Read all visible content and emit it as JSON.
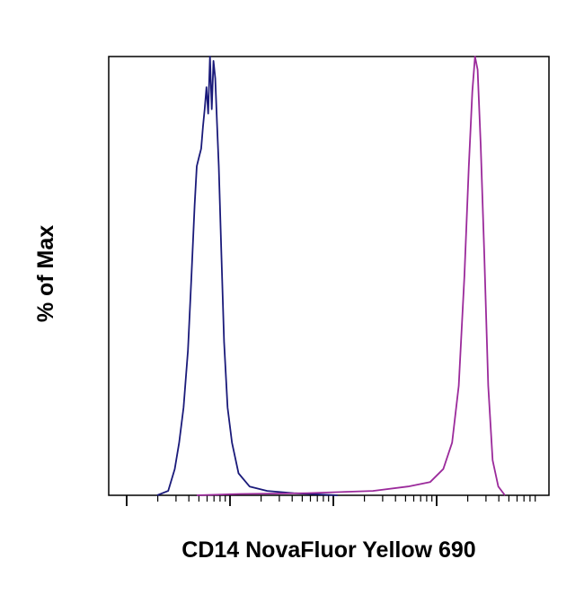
{
  "chart_data": {
    "type": "line",
    "title": "",
    "xlabel": "CD14 NovaFluor Yellow 690",
    "ylabel": "% of Max",
    "xlim": [
      0,
      1
    ],
    "ylim": [
      0,
      100
    ],
    "x_scale": "log",
    "x_tick_labels": [],
    "y_tick_labels": [],
    "grid": false,
    "legend": "none",
    "series": [
      {
        "color": "#1a1a7a",
        "x": [
          0.11,
          0.135,
          0.15,
          0.16,
          0.17,
          0.18,
          0.188,
          0.195,
          0.2,
          0.205,
          0.21,
          0.214,
          0.218,
          0.222,
          0.226,
          0.23,
          0.234,
          0.238,
          0.242,
          0.246,
          0.25,
          0.256,
          0.262,
          0.27,
          0.28,
          0.295,
          0.32,
          0.36,
          0.42,
          0.52
        ],
        "y": [
          0,
          1,
          6,
          12,
          20,
          33,
          50,
          66,
          75,
          77,
          79,
          84,
          88,
          93,
          87,
          100,
          88,
          99,
          95,
          85,
          75,
          55,
          35,
          20,
          12,
          5,
          2,
          1,
          0.5,
          0
        ]
      },
      {
        "color": "#9b2a9b",
        "x": [
          0.2,
          0.3,
          0.45,
          0.6,
          0.68,
          0.73,
          0.76,
          0.78,
          0.795,
          0.808,
          0.818,
          0.826,
          0.832,
          0.838,
          0.845,
          0.853,
          0.862,
          0.872,
          0.885,
          0.9
        ],
        "y": [
          0,
          0.3,
          0.5,
          1,
          2,
          3,
          6,
          12,
          25,
          50,
          75,
          92,
          100,
          97,
          80,
          55,
          25,
          8,
          2,
          0
        ]
      }
    ]
  }
}
